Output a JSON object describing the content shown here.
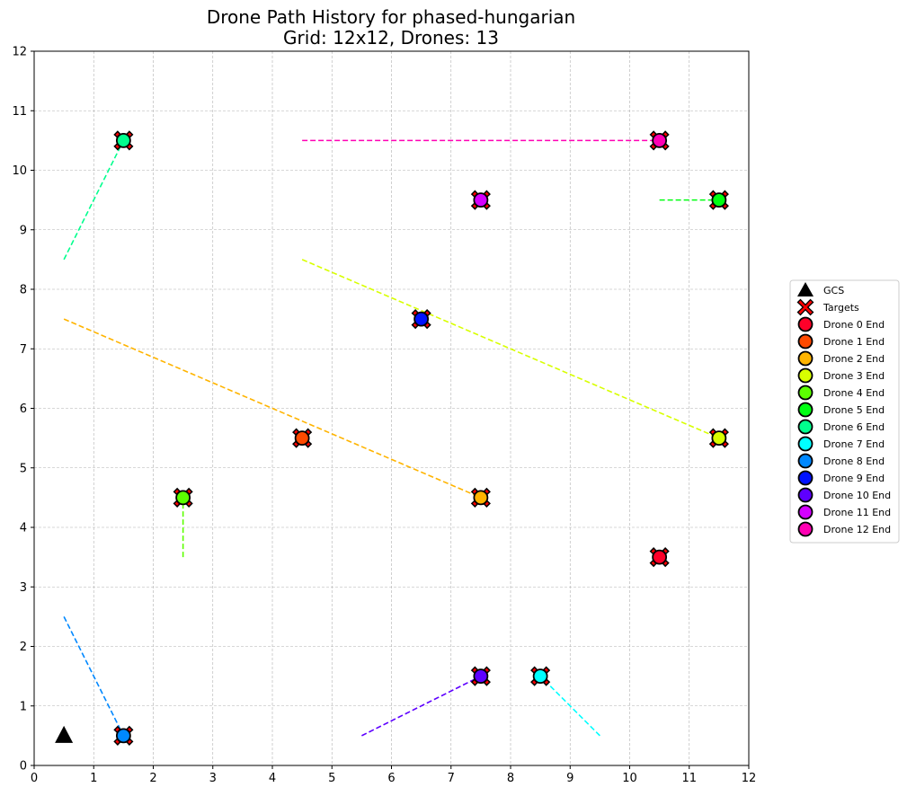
{
  "chart_data": {
    "type": "scatter",
    "title": "Drone Path History for phased-hungarian",
    "subtitle": "Grid: 12x12, Drones: 13",
    "xlabel": "",
    "ylabel": "",
    "xlim": [
      0,
      12
    ],
    "ylim": [
      0,
      12
    ],
    "xticks": [
      0,
      1,
      2,
      3,
      4,
      5,
      6,
      7,
      8,
      9,
      10,
      11,
      12
    ],
    "yticks": [
      0,
      1,
      2,
      3,
      4,
      5,
      6,
      7,
      8,
      9,
      10,
      11,
      12
    ],
    "grid": true,
    "legend_position": "right",
    "gcs": {
      "name": "GCS",
      "x": 0.5,
      "y": 0.5,
      "color": "#000000"
    },
    "targets": {
      "name": "Targets",
      "color": "#ff0000",
      "points": [
        [
          10.5,
          3.5
        ],
        [
          4.5,
          5.5
        ],
        [
          7.5,
          4.5
        ],
        [
          11.5,
          5.5
        ],
        [
          2.5,
          4.5
        ],
        [
          11.5,
          9.5
        ],
        [
          1.5,
          10.5
        ],
        [
          8.5,
          1.5
        ],
        [
          1.5,
          0.5
        ],
        [
          6.5,
          7.5
        ],
        [
          7.5,
          1.5
        ],
        [
          7.5,
          9.5
        ],
        [
          10.5,
          10.5
        ]
      ]
    },
    "drones": [
      {
        "name": "Drone 0 End",
        "color": "#ff0029",
        "path": [
          [
            10.5,
            3.5
          ]
        ]
      },
      {
        "name": "Drone 1 End",
        "color": "#ff4a00",
        "path": [
          [
            4.5,
            5.5
          ]
        ]
      },
      {
        "name": "Drone 2 End",
        "color": "#ffb400",
        "path": [
          [
            0.5,
            7.5
          ],
          [
            7.5,
            4.5
          ]
        ]
      },
      {
        "name": "Drone 3 End",
        "color": "#d8ff00",
        "path": [
          [
            4.5,
            8.5
          ],
          [
            11.5,
            5.5
          ]
        ]
      },
      {
        "name": "Drone 4 End",
        "color": "#5cff00",
        "path": [
          [
            2.5,
            3.5
          ],
          [
            2.5,
            4.5
          ]
        ]
      },
      {
        "name": "Drone 5 End",
        "color": "#00ff12",
        "path": [
          [
            10.5,
            9.5
          ],
          [
            11.5,
            9.5
          ]
        ]
      },
      {
        "name": "Drone 6 End",
        "color": "#00ff8e",
        "path": [
          [
            0.5,
            8.5
          ],
          [
            1.5,
            10.5
          ]
        ]
      },
      {
        "name": "Drone 7 End",
        "color": "#00ffff",
        "path": [
          [
            9.5,
            0.5
          ],
          [
            8.5,
            1.5
          ]
        ]
      },
      {
        "name": "Drone 8 End",
        "color": "#0088ff",
        "path": [
          [
            0.5,
            2.5
          ],
          [
            1.5,
            0.5
          ]
        ]
      },
      {
        "name": "Drone 9 End",
        "color": "#0012ff",
        "path": [
          [
            6.5,
            7.5
          ]
        ]
      },
      {
        "name": "Drone 10 End",
        "color": "#5e00ff",
        "path": [
          [
            5.5,
            0.5
          ],
          [
            7.5,
            1.5
          ]
        ]
      },
      {
        "name": "Drone 11 End",
        "color": "#d400ff",
        "path": [
          [
            7.5,
            9.5
          ]
        ]
      },
      {
        "name": "Drone 12 End",
        "color": "#ff00b4",
        "path": [
          [
            4.5,
            10.5
          ],
          [
            10.5,
            10.5
          ]
        ]
      }
    ]
  }
}
